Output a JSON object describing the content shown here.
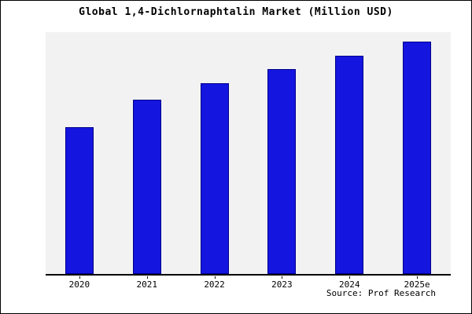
{
  "chart_data": {
    "type": "bar",
    "title": "Global 1,4-Dichlornaphtalin Market (Million USD)",
    "categories": [
      "2020",
      "2021",
      "2022",
      "2023",
      "2024",
      "2025e"
    ],
    "values": [
      63,
      75,
      82,
      88,
      94,
      100
    ],
    "xlabel": "",
    "ylabel": "",
    "ylim": [
      0,
      104
    ],
    "grid": false,
    "legend": "none",
    "y_axis_ticks_visible": false
  },
  "source": "Source: Prof Research",
  "colors": {
    "bar_fill": "#1515e0",
    "bar_border": "#00008b",
    "plot_bg": "#f2f2f2",
    "frame_border": "#000000",
    "text": "#000000"
  }
}
